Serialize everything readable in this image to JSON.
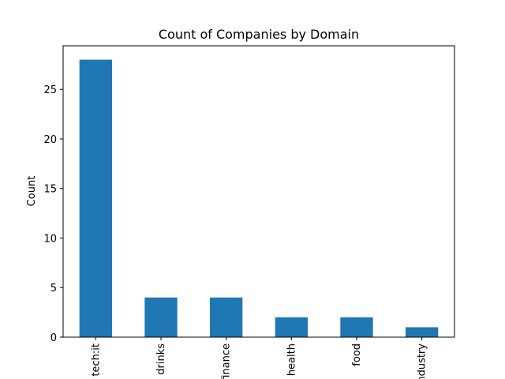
{
  "chart_data": {
    "type": "bar",
    "title": "Count of Companies by Domain",
    "xlabel": "",
    "ylabel": "Count",
    "categories": [
      "tech:it",
      "drinks",
      "finance",
      "health",
      "food",
      "industry"
    ],
    "values": [
      28,
      4,
      4,
      2,
      2,
      1
    ],
    "ylim": [
      0,
      29.4
    ],
    "yticks": [
      0,
      5,
      10,
      15,
      20,
      25
    ],
    "bar_color": "#1f77b4",
    "grid": false,
    "legend": "none"
  }
}
